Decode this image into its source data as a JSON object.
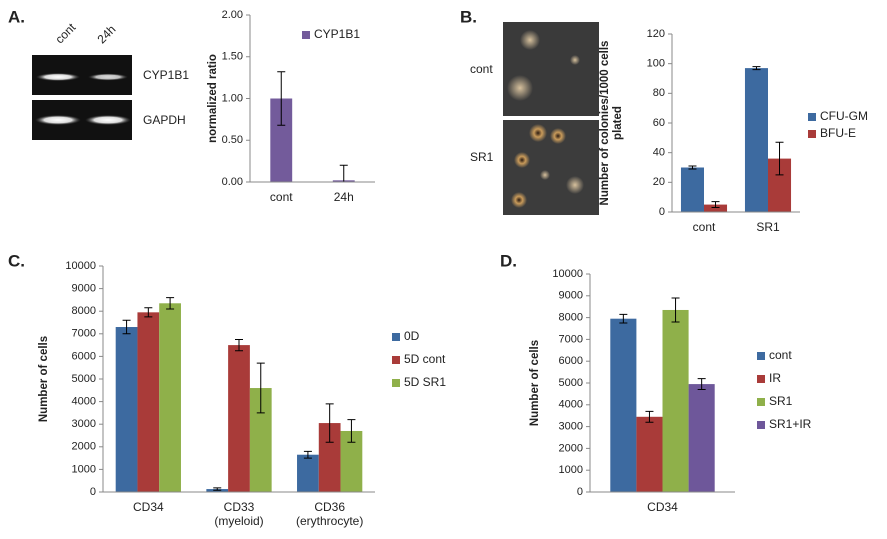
{
  "panels": {
    "labels": [
      "A.",
      "B.",
      "C.",
      "D."
    ],
    "gel": {
      "lanes": [
        "cont",
        "24h"
      ],
      "genes": [
        "CYP1B1",
        "GAPDH"
      ]
    },
    "colony": {
      "rows": [
        "cont",
        "SR1"
      ]
    }
  },
  "chart_data": [
    {
      "type": "bar",
      "y_label": "normalized ratio",
      "categories": [
        "cont",
        "24h"
      ],
      "series": [
        {
          "name": "CYP1B1",
          "color": "#735b9b",
          "values": [
            1.0,
            0.02
          ],
          "errors": [
            0.32,
            0.18
          ]
        }
      ],
      "ylim": [
        0,
        2.0
      ],
      "yticks": [
        {
          "value": 0,
          "label": "0.00"
        },
        {
          "value": 0.5,
          "label": "0.50"
        },
        {
          "value": 1.0,
          "label": "1.00"
        },
        {
          "value": 1.5,
          "label": "1.50"
        },
        {
          "value": 2.0,
          "label": "2.00"
        }
      ],
      "grid": false,
      "legend": "top"
    },
    {
      "type": "bar",
      "y_label": "Number of colonies/1000 cells\nplated",
      "categories": [
        "cont",
        "SR1"
      ],
      "series": [
        {
          "name": "CFU-GM",
          "color": "#3d6aa0",
          "values": [
            30,
            97
          ],
          "errors": [
            1,
            1
          ]
        },
        {
          "name": "BFU-E",
          "color": "#a93b39",
          "values": [
            5,
            36
          ],
          "errors": [
            2,
            11
          ]
        }
      ],
      "ylim": [
        0,
        120
      ],
      "yticks": [
        0,
        20,
        40,
        60,
        80,
        100,
        120
      ],
      "grid": false,
      "legend": "right"
    },
    {
      "type": "bar",
      "y_label": "Number of cells",
      "categories": [
        "CD34",
        "CD33\n(myeloid)",
        "CD36\n(erythrocyte)"
      ],
      "series": [
        {
          "name": "0D",
          "color": "#3d6aa0",
          "values": [
            7300,
            130,
            1650
          ],
          "errors": [
            300,
            50,
            150
          ]
        },
        {
          "name": "5D cont",
          "color": "#a93b39",
          "values": [
            7950,
            6500,
            3050
          ],
          "errors": [
            200,
            250,
            850
          ]
        },
        {
          "name": "5D SR1",
          "color": "#8fb04a",
          "values": [
            8350,
            4600,
            2700
          ],
          "errors": [
            250,
            1100,
            500
          ]
        }
      ],
      "ylim": [
        0,
        10000
      ],
      "yticks": [
        0,
        1000,
        2000,
        3000,
        4000,
        5000,
        6000,
        7000,
        8000,
        9000,
        10000
      ],
      "grid": false,
      "legend": "right"
    },
    {
      "type": "bar",
      "y_label": "Number of cells",
      "categories": [
        "CD34"
      ],
      "series": [
        {
          "name": "cont",
          "color": "#3d6aa0",
          "values": [
            7950
          ],
          "errors": [
            200
          ]
        },
        {
          "name": "IR",
          "color": "#a93b39",
          "values": [
            3450
          ],
          "errors": [
            250
          ]
        },
        {
          "name": "SR1",
          "color": "#8fb04a",
          "values": [
            8350
          ],
          "errors": [
            550
          ]
        },
        {
          "name": "SR1+IR",
          "color": "#6e579a",
          "values": [
            4950
          ],
          "errors": [
            250
          ]
        }
      ],
      "ylim": [
        0,
        10000
      ],
      "yticks": [
        0,
        1000,
        2000,
        3000,
        4000,
        5000,
        6000,
        7000,
        8000,
        9000,
        10000
      ],
      "grid": false,
      "legend": "right"
    }
  ]
}
